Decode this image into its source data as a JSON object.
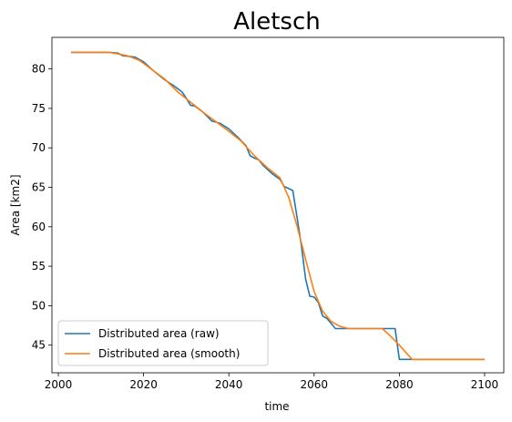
{
  "chart_data": {
    "type": "line",
    "title": "Aletsch",
    "xlabel": "time",
    "ylabel": "Area [km2]",
    "xlim": [
      1998.5,
      2104.5
    ],
    "ylim": [
      41.5,
      84.0
    ],
    "xticks": [
      2000,
      2020,
      2040,
      2060,
      2080,
      2100
    ],
    "yticks": [
      45,
      50,
      55,
      60,
      65,
      70,
      75,
      80
    ],
    "grid": false,
    "legend_position": "lower-left",
    "series": [
      {
        "name": "Distributed area (raw)",
        "color": "#1f77b4",
        "x": [
          2003,
          2012,
          2014,
          2015,
          2018,
          2020,
          2022,
          2025,
          2027,
          2029,
          2030,
          2031,
          2032,
          2034,
          2036,
          2038,
          2040,
          2042,
          2044,
          2045,
          2046,
          2047,
          2048,
          2050,
          2052,
          2053,
          2055,
          2056,
          2057,
          2058,
          2059,
          2060,
          2061,
          2062,
          2063,
          2065,
          2067,
          2070,
          2072,
          2075,
          2078,
          2079,
          2080,
          2085,
          2090,
          2095,
          2100
        ],
        "y": [
          82.1,
          82.1,
          82.0,
          81.7,
          81.5,
          80.9,
          79.9,
          78.6,
          77.9,
          77.1,
          76.3,
          75.4,
          75.3,
          74.5,
          73.4,
          73.1,
          72.4,
          71.4,
          70.3,
          69.0,
          68.7,
          68.5,
          67.8,
          66.8,
          66.0,
          65.1,
          64.6,
          61.2,
          57.7,
          53.4,
          51.2,
          51.1,
          50.4,
          48.7,
          48.4,
          47.1,
          47.1,
          47.1,
          47.1,
          47.1,
          47.1,
          47.1,
          43.2,
          43.2,
          43.2,
          43.2,
          43.2
        ]
      },
      {
        "name": "Distributed area (smooth)",
        "color": "#ff7f0e",
        "x": [
          2003,
          2012,
          2016,
          2019,
          2022,
          2025,
          2028,
          2031,
          2034,
          2037,
          2040,
          2043,
          2046,
          2049,
          2052,
          2054,
          2056,
          2058,
          2060,
          2062,
          2064,
          2066,
          2068,
          2071,
          2074,
          2076,
          2078,
          2080,
          2083,
          2087,
          2091,
          2095,
          2100
        ],
        "y": [
          82.1,
          82.1,
          81.7,
          81.1,
          79.9,
          78.7,
          77.1,
          75.8,
          74.5,
          73.3,
          72.1,
          70.8,
          69.0,
          67.5,
          66.2,
          63.8,
          60.1,
          55.9,
          51.8,
          49.3,
          48.0,
          47.4,
          47.1,
          47.1,
          47.1,
          47.1,
          46.1,
          45.0,
          43.2,
          43.2,
          43.2,
          43.2,
          43.2
        ]
      }
    ]
  }
}
